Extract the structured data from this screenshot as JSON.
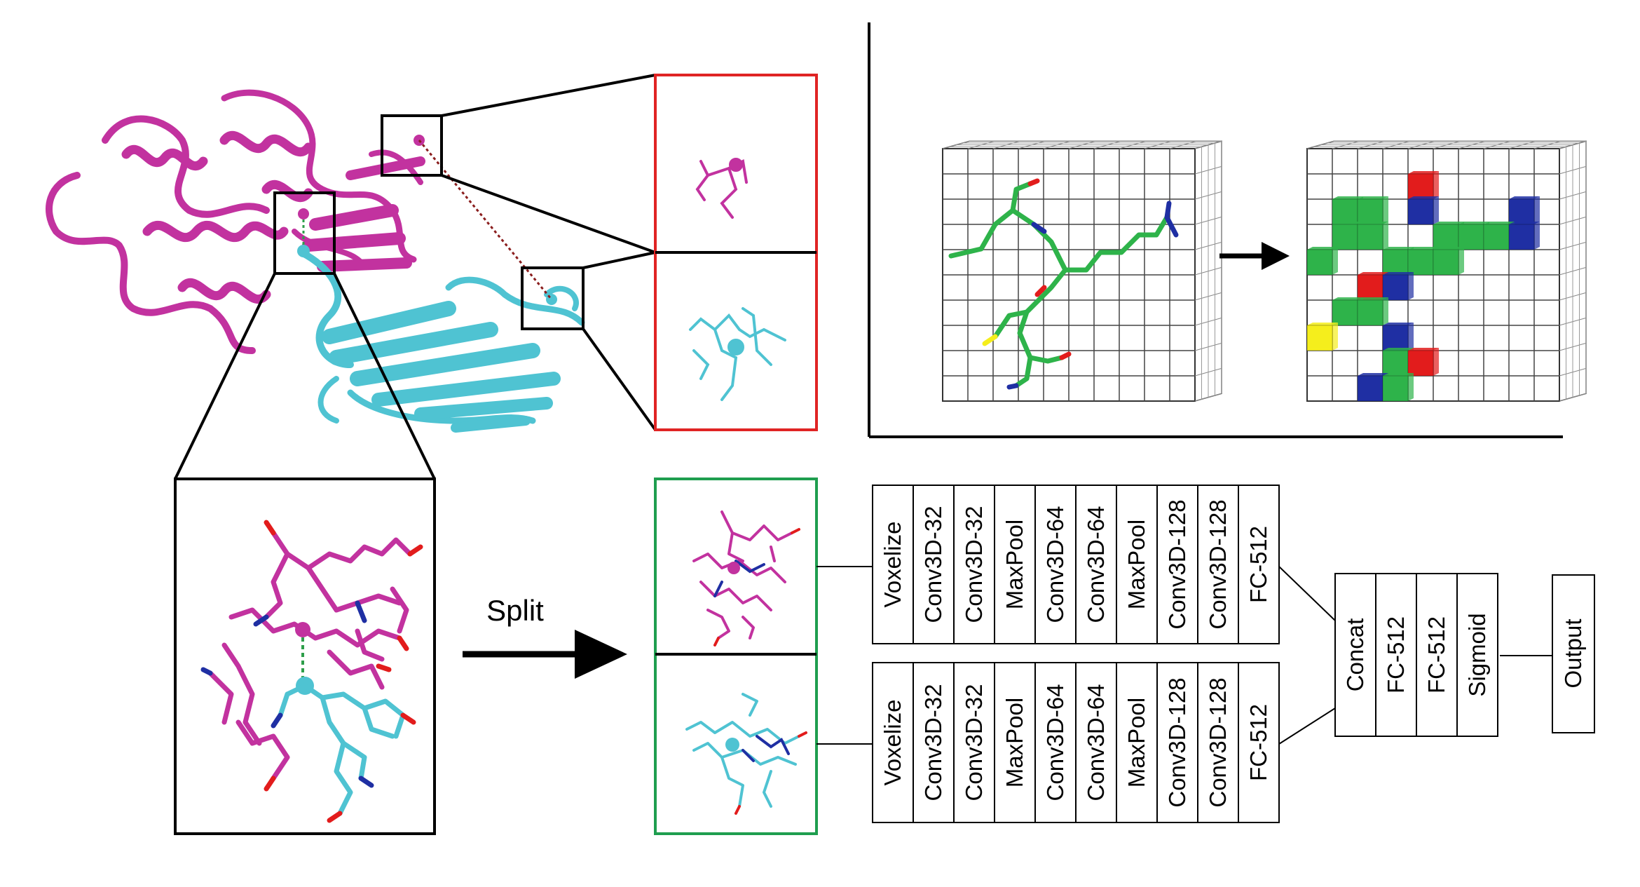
{
  "split_label": "Split",
  "network": {
    "branch_top": [
      "Voxelize",
      "Conv3D-32",
      "Conv3D-32",
      "MaxPool",
      "Conv3D-64",
      "Conv3D-64",
      "MaxPool",
      "Conv3D-128",
      "Conv3D-128",
      "FC-512"
    ],
    "branch_bottom": [
      "Voxelize",
      "Conv3D-32",
      "Conv3D-32",
      "MaxPool",
      "Conv3D-64",
      "Conv3D-64",
      "MaxPool",
      "Conv3D-128",
      "Conv3D-128",
      "FC-512"
    ],
    "merge": [
      "Concat",
      "FC-512",
      "FC-512",
      "Sigmoid"
    ],
    "output": "Output"
  },
  "colors": {
    "protein_a": "#c2329f",
    "protein_b": "#4fc3d2",
    "atom_carbon": "#2eb34a",
    "atom_nitrogen": "#1f2fa3",
    "atom_oxygen": "#e21c1c",
    "atom_sulfur": "#f5ee1c",
    "interface_box": "#e02424",
    "split_box": "#1f9e4f"
  },
  "voxel_grid": {
    "grid_size": 10,
    "cells": [
      {
        "col": 4,
        "row": 1,
        "type": "oxygen"
      },
      {
        "col": 1,
        "row": 2,
        "type": "carbon"
      },
      {
        "col": 2,
        "row": 2,
        "type": "carbon"
      },
      {
        "col": 4,
        "row": 2,
        "type": "nitrogen"
      },
      {
        "col": 8,
        "row": 2,
        "type": "nitrogen"
      },
      {
        "col": 1,
        "row": 3,
        "type": "carbon"
      },
      {
        "col": 2,
        "row": 3,
        "type": "carbon"
      },
      {
        "col": 5,
        "row": 3,
        "type": "carbon"
      },
      {
        "col": 6,
        "row": 3,
        "type": "carbon"
      },
      {
        "col": 7,
        "row": 3,
        "type": "carbon"
      },
      {
        "col": 8,
        "row": 3,
        "type": "nitrogen"
      },
      {
        "col": 0,
        "row": 4,
        "type": "carbon"
      },
      {
        "col": 3,
        "row": 4,
        "type": "carbon"
      },
      {
        "col": 4,
        "row": 4,
        "type": "carbon"
      },
      {
        "col": 5,
        "row": 4,
        "type": "carbon"
      },
      {
        "col": 2,
        "row": 5,
        "type": "oxygen"
      },
      {
        "col": 3,
        "row": 5,
        "type": "nitrogen"
      },
      {
        "col": 1,
        "row": 6,
        "type": "carbon"
      },
      {
        "col": 2,
        "row": 6,
        "type": "carbon"
      },
      {
        "col": 0,
        "row": 7,
        "type": "sulfur"
      },
      {
        "col": 3,
        "row": 7,
        "type": "nitrogen"
      },
      {
        "col": 3,
        "row": 8,
        "type": "carbon"
      },
      {
        "col": 4,
        "row": 8,
        "type": "oxygen"
      },
      {
        "col": 2,
        "row": 9,
        "type": "nitrogen"
      },
      {
        "col": 3,
        "row": 9,
        "type": "carbon"
      }
    ]
  }
}
